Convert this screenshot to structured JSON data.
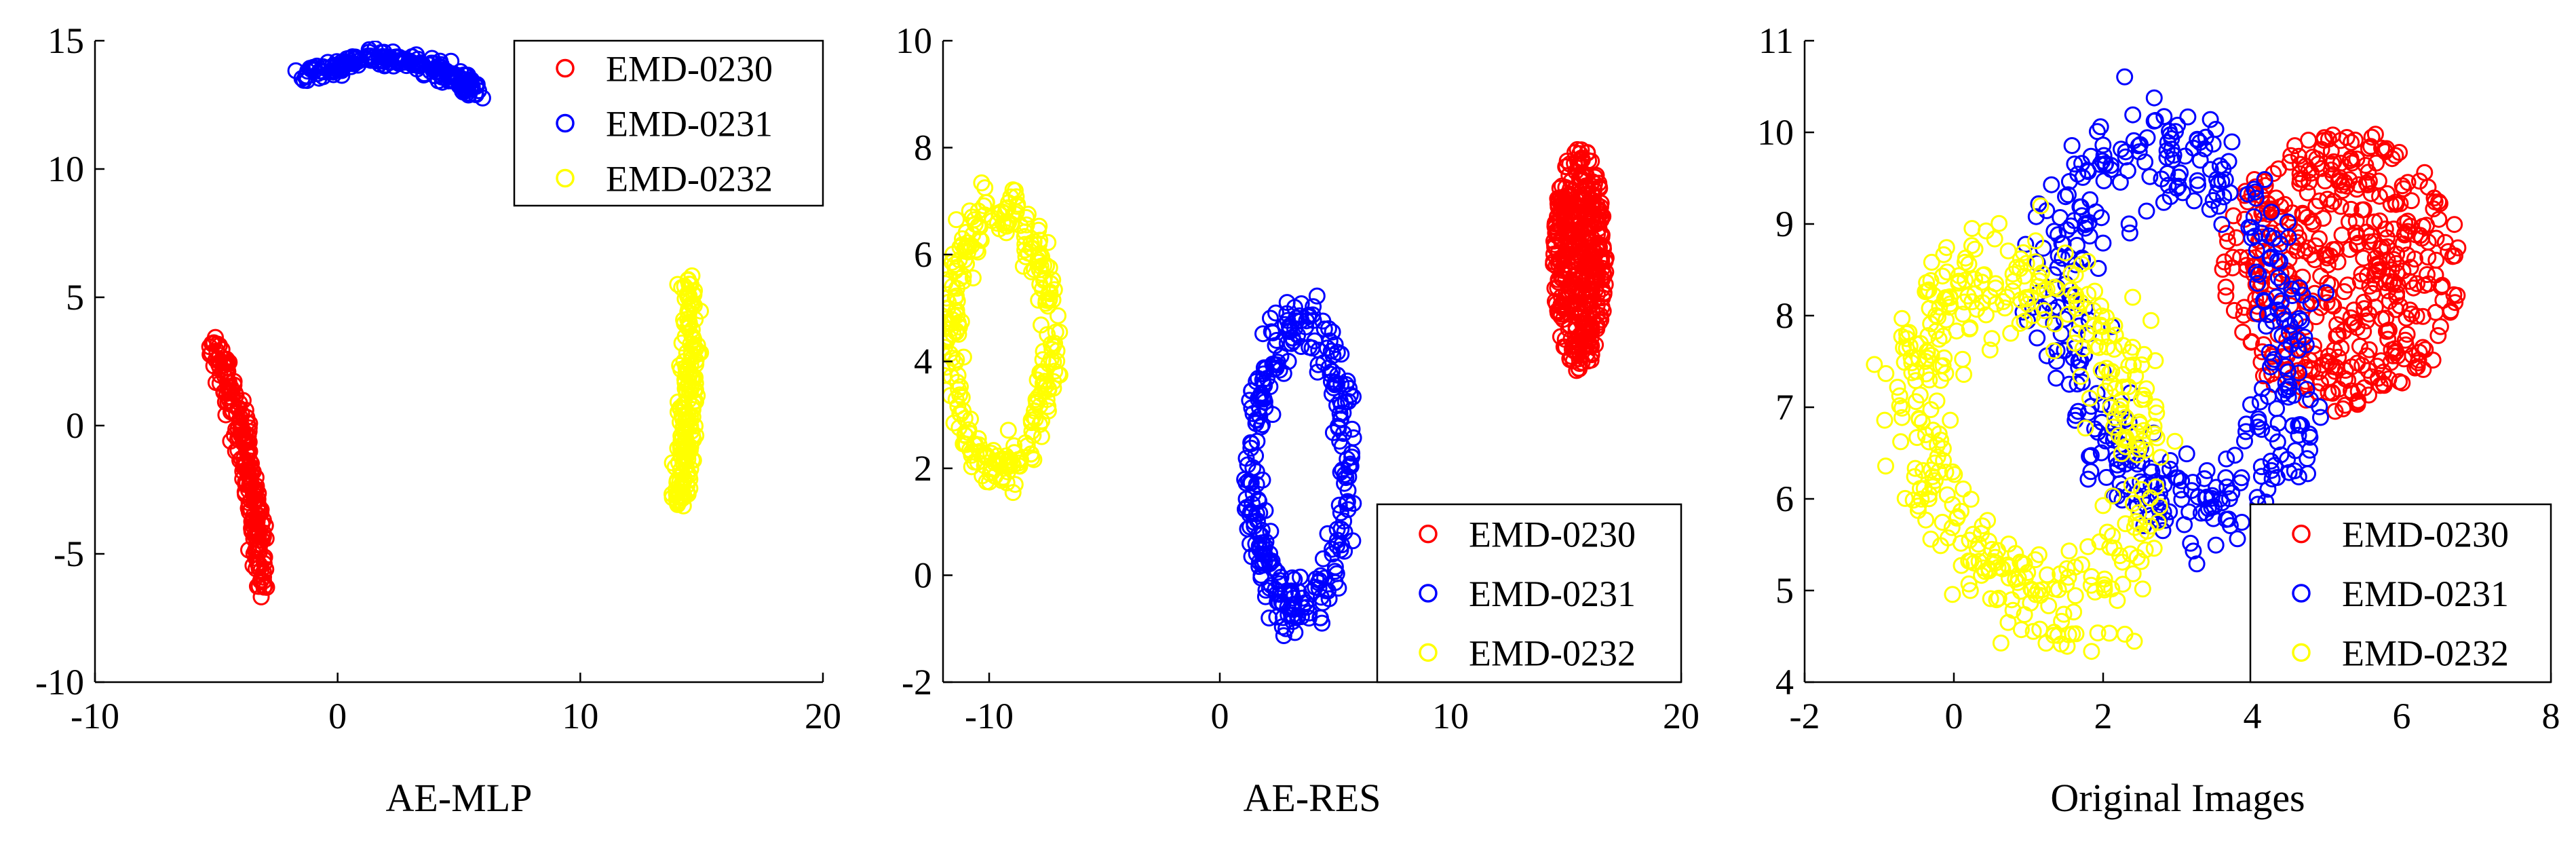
{
  "chart_data": [
    {
      "type": "scatter",
      "xlabel": "AE-MLP",
      "xlim": [
        -10,
        20
      ],
      "ylim": [
        -10,
        15
      ],
      "xticks": [
        -10,
        0,
        10,
        20
      ],
      "yticks": [
        -10,
        -5,
        0,
        5,
        10,
        15
      ],
      "legend_position": "top-right",
      "grid": false,
      "series": [
        {
          "name": "EMD-0230",
          "color": "#ff0000",
          "shape": {
            "kind": "curve",
            "pts": [
              [
                -5.0,
                3.2
              ],
              [
                -4.5,
                1.5
              ],
              [
                -4.0,
                0.0
              ],
              [
                -3.6,
                -2.0
              ],
              [
                -3.3,
                -4.0
              ],
              [
                -3.1,
                -6.3
              ]
            ],
            "w": 0.35,
            "n": 220
          }
        },
        {
          "name": "EMD-0231",
          "color": "#0000ff",
          "shape": {
            "kind": "curve",
            "pts": [
              [
                -1.5,
                13.7
              ],
              [
                0.0,
                14.0
              ],
              [
                1.5,
                14.3
              ],
              [
                3.0,
                14.2
              ],
              [
                4.5,
                13.7
              ],
              [
                5.8,
                12.9
              ]
            ],
            "w": 0.35,
            "n": 200
          }
        },
        {
          "name": "EMD-0232",
          "color": "#ffff00",
          "shape": {
            "kind": "curve",
            "pts": [
              [
                14.5,
                5.7
              ],
              [
                14.6,
                3.0
              ],
              [
                14.4,
                0.5
              ],
              [
                14.3,
                -1.5
              ],
              [
                14.0,
                -3.0
              ]
            ],
            "w": 0.35,
            "n": 200
          }
        }
      ]
    },
    {
      "type": "scatter",
      "xlabel": "AE-RES",
      "xlim": [
        -12,
        20
      ],
      "ylim": [
        -2,
        10
      ],
      "xticks": [
        -10,
        0,
        10,
        20
      ],
      "yticks": [
        -2,
        0,
        2,
        4,
        6,
        8,
        10
      ],
      "legend_position": "bottom-right",
      "grid": false,
      "series": [
        {
          "name": "EMD-0230",
          "color": "#ff0000",
          "shape": {
            "kind": "blob",
            "cx": 15.6,
            "cy": 5.9,
            "rx": 1.15,
            "ry": 2.1,
            "n": 420
          }
        },
        {
          "name": "EMD-0231",
          "color": "#0000ff",
          "shape": {
            "kind": "ring",
            "cx": 3.5,
            "cy": 2.0,
            "rx": 2.1,
            "ry": 2.6,
            "rot": -8,
            "thick": 0.22,
            "n": 300
          }
        },
        {
          "name": "EMD-0232",
          "color": "#ffff00",
          "shape": {
            "kind": "ring",
            "cx": -9.5,
            "cy": 4.4,
            "rx": 2.2,
            "ry": 2.4,
            "rot": 0,
            "thick": 0.22,
            "n": 300
          }
        }
      ]
    },
    {
      "type": "scatter",
      "xlabel": "Original  Images",
      "xlim": [
        -2,
        8
      ],
      "ylim": [
        4,
        11
      ],
      "xticks": [
        -2,
        0,
        2,
        4,
        6,
        8
      ],
      "yticks": [
        4,
        5,
        6,
        7,
        8,
        9,
        10,
        11
      ],
      "legend_position": "bottom-right",
      "grid": false,
      "series": [
        {
          "name": "EMD-0230",
          "color": "#ff0000",
          "shape": {
            "kind": "blob",
            "cx": 5.2,
            "cy": 8.5,
            "rx": 1.6,
            "ry": 1.55,
            "n": 450
          }
        },
        {
          "name": "EMD-0231",
          "color": "#0000ff",
          "shape": {
            "kind": "ring",
            "cx": 3.0,
            "cy": 7.9,
            "rx": 1.5,
            "ry": 2.0,
            "rot": 20,
            "thick": 0.3,
            "n": 400
          }
        },
        {
          "name": "EMD-0232",
          "color": "#ffff00",
          "shape": {
            "kind": "ring",
            "cx": 1.0,
            "cy": 6.7,
            "rx": 1.4,
            "ry": 1.9,
            "rot": 25,
            "thick": 0.32,
            "n": 420
          }
        }
      ]
    }
  ]
}
